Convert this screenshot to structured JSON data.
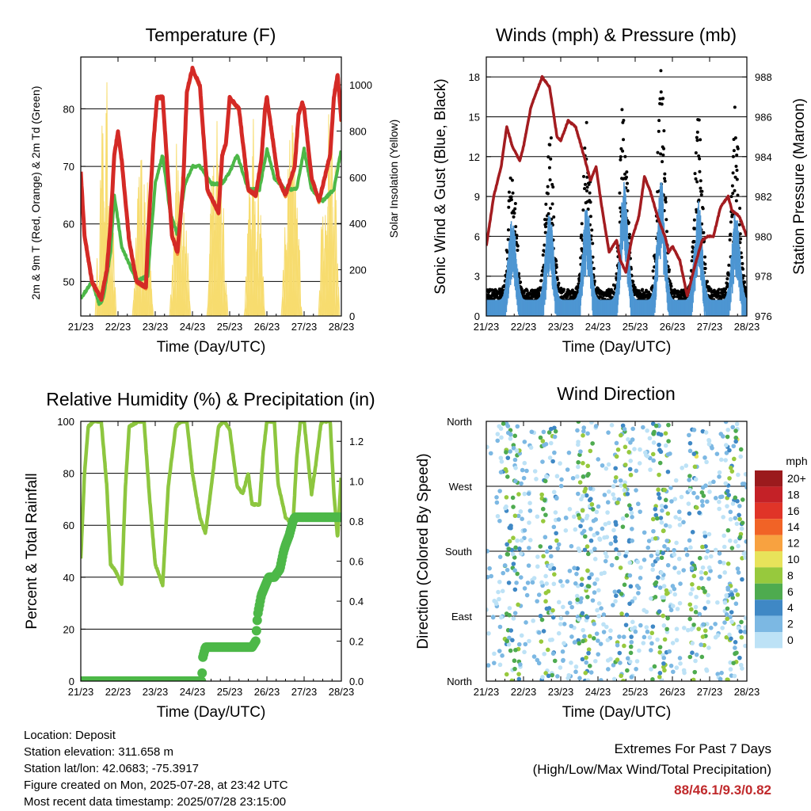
{
  "panels": {
    "temperature": {
      "title": "Temperature (F)",
      "xlabel": "Time (Day/UTC)",
      "ylabel_left": "2m & 9m T (Red, Orange) & 2m Td (Green)",
      "ylabel_right": "Solar Insolation (Yellow)"
    },
    "winds": {
      "title": "Winds (mph) & Pressure (mb)",
      "xlabel": "Time (Day/UTC)",
      "ylabel_left": "Sonic Wind & Gust (Blue, Black)",
      "ylabel_right": "Station Pressure (Maroon)"
    },
    "humidity": {
      "title": "Relative Humidity (%) & Precipitation (in)",
      "xlabel": "Time (Day/UTC)",
      "ylabel_left": "Percent & Total Rainfall"
    },
    "direction": {
      "title": "Wind Direction",
      "xlabel": "Time (Day/UTC)",
      "ylabel_left": "Direction (Colored By Speed)"
    }
  },
  "info": {
    "location": "Location: Deposit",
    "elevation": "Station elevation: 311.658 m",
    "latlon": "Station lat/lon: 42.0683; -75.3917",
    "created": "Figure created on Mon, 2025-07-28, at 23:42 UTC",
    "recent": "Most recent data timestamp: 2025/07/28 23:15:00"
  },
  "extremes": {
    "line1": "Extremes For Past 7 Days",
    "line2": "(High/Low/Max Wind/Total Precipitation)",
    "values": "88/46.1/9.3/0.82"
  },
  "colors": {
    "temp_red": "#d42a26",
    "temp_orange": "#f2822e",
    "dewpoint_green": "#4db848",
    "solar_yellow": "#f7dc6f",
    "wind_blue": "#4e96d2",
    "gust_black": "#000000",
    "pressure_maroon": "#a31c20",
    "rh_lightgreen": "#8dc63f",
    "precip_green": "#4db848"
  },
  "chart_data": [
    {
      "type": "line",
      "id": "temperature",
      "x_ticks": [
        "21/23",
        "22/23",
        "23/23",
        "24/23",
        "25/23",
        "26/23",
        "27/23",
        "28/23"
      ],
      "y_left_ticks": [
        50,
        60,
        70,
        80
      ],
      "y_left_range": [
        44,
        89
      ],
      "y_right_ticks": [
        0,
        200,
        400,
        600,
        800,
        1000
      ],
      "y_right_range": [
        0,
        1120
      ],
      "series": [
        {
          "name": "2m T",
          "color": "#d42a26",
          "axis": "left",
          "x": [
            0,
            0.1,
            0.3,
            0.55,
            0.7,
            0.8,
            0.9,
            1.0,
            1.1,
            1.3,
            1.5,
            1.75,
            1.8,
            1.95,
            2.05,
            2.2,
            2.45,
            2.6,
            2.75,
            2.85,
            3.0,
            3.2,
            3.4,
            3.7,
            3.8,
            3.9,
            4.0,
            4.25,
            4.5,
            4.7,
            4.85,
            4.95,
            5.0,
            5.3,
            5.5,
            5.75,
            5.85,
            5.95,
            6.0,
            6.2,
            6.4,
            6.7,
            6.8,
            6.9,
            7.0
          ],
          "y": [
            69,
            58,
            50,
            47,
            52,
            60,
            72,
            76,
            71,
            57,
            50,
            49,
            57,
            74,
            82,
            82,
            58,
            55,
            67,
            83,
            87,
            84,
            66,
            62,
            72,
            74,
            82,
            80,
            66,
            65,
            71,
            80,
            82,
            68,
            65,
            70,
            79,
            81,
            80,
            68,
            64,
            72,
            82,
            86,
            78
          ]
        },
        {
          "name": "2m Td",
          "color": "#4db848",
          "axis": "left",
          "x": [
            0,
            0.3,
            0.5,
            0.6,
            0.8,
            0.9,
            1.1,
            1.3,
            1.5,
            1.8,
            2.0,
            2.2,
            2.4,
            2.6,
            2.8,
            3.0,
            3.2,
            3.5,
            3.8,
            4.0,
            4.2,
            4.5,
            4.8,
            5.0,
            5.2,
            5.5,
            5.8,
            6.0,
            6.2,
            6.5,
            6.8,
            7.0
          ],
          "y": [
            47,
            50,
            46,
            47,
            55,
            65,
            56,
            53,
            50,
            51,
            67,
            72,
            62,
            58,
            67,
            70,
            70,
            67,
            67,
            69,
            72,
            66,
            66,
            73,
            68,
            66,
            66,
            73,
            66,
            64,
            66,
            73
          ]
        },
        {
          "name": "Solar Insolation",
          "color": "#f7dc6f",
          "axis": "right",
          "peaks": [
            {
              "day": 0.67,
              "value": 1040
            },
            {
              "day": 1.67,
              "value": 750
            },
            {
              "day": 2.67,
              "value": 920
            },
            {
              "day": 3.67,
              "value": 1000
            },
            {
              "day": 4.67,
              "value": 880
            },
            {
              "day": 5.67,
              "value": 870
            },
            {
              "day": 6.67,
              "value": 1100
            }
          ]
        }
      ]
    },
    {
      "type": "line",
      "id": "winds",
      "x_ticks": [
        "21/23",
        "22/23",
        "23/23",
        "24/23",
        "25/23",
        "26/23",
        "27/23",
        "28/23"
      ],
      "y_left_ticks": [
        0,
        3,
        6,
        9,
        12,
        15,
        18
      ],
      "y_left_range": [
        0,
        19.5
      ],
      "y_right_ticks": [
        976,
        978,
        980,
        982,
        984,
        986,
        988
      ],
      "y_right_range": [
        976,
        989
      ],
      "series": [
        {
          "name": "Station Pressure",
          "color": "#a31c20",
          "axis": "right",
          "x": [
            0,
            0.2,
            0.4,
            0.55,
            0.7,
            0.9,
            1.0,
            1.2,
            1.5,
            1.7,
            1.9,
            2.0,
            2.2,
            2.4,
            2.6,
            2.8,
            2.95,
            3.1,
            3.3,
            3.5,
            3.6,
            3.75,
            3.9,
            4.1,
            4.25,
            4.4,
            4.6,
            4.8,
            4.9,
            5.0,
            5.2,
            5.4,
            5.6,
            5.8,
            5.95,
            6.1,
            6.3,
            6.5,
            6.6,
            6.8,
            7.0
          ],
          "y": [
            979.5,
            982,
            983.5,
            985.5,
            984.5,
            983.8,
            984.5,
            986.5,
            988,
            987.5,
            985,
            984.8,
            985.8,
            985.5,
            984.2,
            982.8,
            983.5,
            981.5,
            979.2,
            979.8,
            978.8,
            978.2,
            979.8,
            981,
            983,
            982.3,
            981,
            980,
            979.2,
            979.5,
            978.8,
            977,
            978.5,
            979.8,
            980,
            980,
            981.5,
            982,
            981.3,
            981,
            980
          ]
        },
        {
          "name": "Sonic Wind",
          "color": "#4e96d2",
          "axis": "left",
          "peaks": [
            {
              "day": 0.7,
              "value": 6.5
            },
            {
              "day": 1.7,
              "value": 7
            },
            {
              "day": 2.7,
              "value": 7.5
            },
            {
              "day": 3.7,
              "value": 9
            },
            {
              "day": 4.7,
              "value": 9.3
            },
            {
              "day": 5.7,
              "value": 7.5
            },
            {
              "day": 6.7,
              "value": 7
            }
          ]
        },
        {
          "name": "Gust",
          "color": "#000000",
          "axis": "left",
          "peaks": [
            {
              "day": 0.7,
              "value": 11
            },
            {
              "day": 1.7,
              "value": 13
            },
            {
              "day": 2.7,
              "value": 14
            },
            {
              "day": 3.7,
              "value": 16
            },
            {
              "day": 4.7,
              "value": 17
            },
            {
              "day": 5.7,
              "value": 14
            },
            {
              "day": 6.7,
              "value": 15
            }
          ]
        }
      ]
    },
    {
      "type": "line",
      "id": "humidity",
      "x_ticks": [
        "21/23",
        "22/23",
        "23/23",
        "24/23",
        "25/23",
        "26/23",
        "27/23",
        "28/23"
      ],
      "y_left_ticks": [
        0,
        20,
        40,
        60,
        80,
        100
      ],
      "y_left_range": [
        0,
        100
      ],
      "y_right_ticks": [
        0.0,
        0.2,
        0.4,
        0.6,
        0.8,
        1.0,
        1.2
      ],
      "y_right_range": [
        0,
        1.3
      ],
      "series": [
        {
          "name": "Relative Humidity",
          "color": "#8dc63f",
          "axis": "left",
          "x": [
            0,
            0.1,
            0.2,
            0.35,
            0.55,
            0.7,
            0.8,
            0.95,
            1.1,
            1.2,
            1.3,
            1.55,
            1.7,
            1.85,
            2.0,
            2.2,
            2.35,
            2.55,
            2.7,
            2.85,
            3.0,
            3.2,
            3.35,
            3.55,
            3.7,
            3.85,
            4.0,
            4.2,
            4.35,
            4.5,
            4.6,
            4.8,
            4.9,
            5.0,
            5.2,
            5.3,
            5.5,
            5.7,
            5.8,
            5.9,
            6.0,
            6.2,
            6.3,
            6.45,
            6.5,
            6.7,
            6.8,
            6.9,
            7.0
          ],
          "y": [
            47,
            80,
            98,
            100,
            100,
            75,
            45,
            42,
            37,
            75,
            98,
            100,
            100,
            70,
            45,
            37,
            75,
            98,
            100,
            100,
            80,
            63,
            57,
            80,
            98,
            100,
            97,
            75,
            72,
            80,
            68,
            68,
            88,
            100,
            100,
            76,
            63,
            60,
            86,
            100,
            100,
            72,
            82,
            99,
            100,
            100,
            72,
            55,
            80
          ]
        },
        {
          "name": "Total Precipitation",
          "color": "#4db848",
          "axis": "right",
          "x": [
            0,
            3.25,
            3.28,
            3.35,
            4.6,
            4.7,
            4.7,
            4.75,
            4.85,
            5.05,
            5.2,
            5.35,
            5.45,
            5.5,
            5.6,
            5.7,
            5.75,
            6.0,
            7.0
          ],
          "y": [
            0,
            0,
            0.12,
            0.17,
            0.17,
            0.2,
            0.2,
            0.33,
            0.43,
            0.52,
            0.52,
            0.56,
            0.65,
            0.68,
            0.73,
            0.8,
            0.82,
            0.82,
            0.82
          ]
        }
      ]
    },
    {
      "type": "scatter",
      "id": "direction",
      "x_ticks": [
        "21/23",
        "22/23",
        "23/23",
        "24/23",
        "25/23",
        "26/23",
        "27/23",
        "28/23"
      ],
      "y_ticks": [
        "North",
        "West",
        "South",
        "East",
        "North"
      ],
      "legend": {
        "title": "mph",
        "labels": [
          "20+",
          "18",
          "16",
          "14",
          "12",
          "10",
          "8",
          "6",
          "4",
          "2",
          "0"
        ],
        "colors": [
          "#9b1a1d",
          "#c42127",
          "#e03428",
          "#f16326",
          "#f8a240",
          "#e8e35a",
          "#97c93d",
          "#4eab4f",
          "#3f88c5",
          "#7cb8e3",
          "#bde2f6"
        ]
      }
    }
  ]
}
